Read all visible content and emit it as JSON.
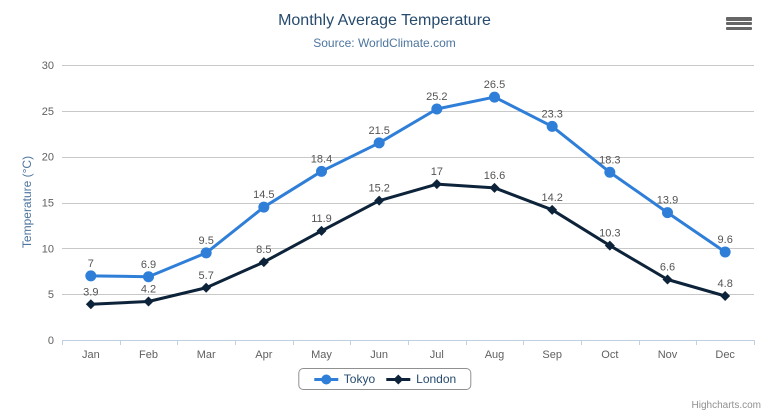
{
  "chart_data": {
    "type": "line",
    "title": "Monthly Average Temperature",
    "subtitle": "Source: WorldClimate.com",
    "categories": [
      "Jan",
      "Feb",
      "Mar",
      "Apr",
      "May",
      "Jun",
      "Jul",
      "Aug",
      "Sep",
      "Oct",
      "Nov",
      "Dec"
    ],
    "series": [
      {
        "name": "Tokyo",
        "color": "#2f7ed8",
        "marker": "circle",
        "values": [
          7,
          6.9,
          9.5,
          14.5,
          18.4,
          21.5,
          25.2,
          26.5,
          23.3,
          18.3,
          13.9,
          9.6
        ]
      },
      {
        "name": "London",
        "color": "#0d233a",
        "marker": "diamond",
        "values": [
          3.9,
          4.2,
          5.7,
          8.5,
          11.9,
          15.2,
          17,
          16.6,
          14.2,
          10.3,
          6.6,
          4.8
        ]
      }
    ],
    "xlabel": "",
    "ylabel": "Temperature (°C)",
    "ylim": [
      0,
      30
    ],
    "yticks": [
      0,
      5,
      10,
      15,
      20,
      25,
      30
    ],
    "grid": true,
    "legend_position": "bottom",
    "data_labels": true
  },
  "credits": {
    "text": "Highcharts.com"
  },
  "export_menu": {
    "icon": "hamburger-menu-icon"
  },
  "colors": {
    "title": "#274b6d",
    "subtitle": "#4d759e",
    "axis_title": "#4d759e",
    "tick_label": "#606060",
    "data_label": "#545454",
    "gridline": "#c8c8c8",
    "x_axis_line": "#c0d0e0",
    "legend_text": "#274b6d",
    "legend_border": "#909090",
    "credits_text": "#909090",
    "menu_icon": "#666666",
    "background": "#ffffff"
  }
}
